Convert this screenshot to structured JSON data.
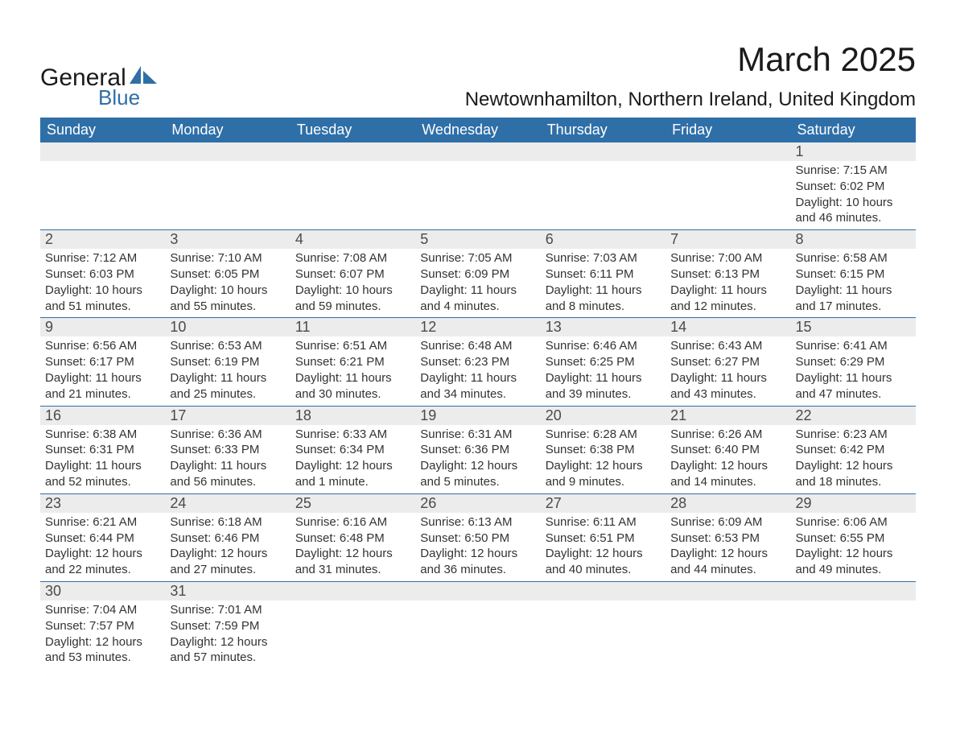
{
  "brand": {
    "main": "General",
    "sub": "Blue",
    "accent": "#2f6fa8"
  },
  "title": "March 2025",
  "location": "Newtownhamilton, Northern Ireland, United Kingdom",
  "colors": {
    "header_bg": "#2f6fa8",
    "header_text": "#ffffff",
    "daynum_bg": "#ececec",
    "daynum_text": "#4a4a4a",
    "body_text": "#333333",
    "rule": "#2f6fa8"
  },
  "day_headers": [
    "Sunday",
    "Monday",
    "Tuesday",
    "Wednesday",
    "Thursday",
    "Friday",
    "Saturday"
  ],
  "weeks": [
    [
      null,
      null,
      null,
      null,
      null,
      null,
      {
        "n": "1",
        "sunrise": "Sunrise: 7:15 AM",
        "sunset": "Sunset: 6:02 PM",
        "daylight1": "Daylight: 10 hours",
        "daylight2": "and 46 minutes."
      }
    ],
    [
      {
        "n": "2",
        "sunrise": "Sunrise: 7:12 AM",
        "sunset": "Sunset: 6:03 PM",
        "daylight1": "Daylight: 10 hours",
        "daylight2": "and 51 minutes."
      },
      {
        "n": "3",
        "sunrise": "Sunrise: 7:10 AM",
        "sunset": "Sunset: 6:05 PM",
        "daylight1": "Daylight: 10 hours",
        "daylight2": "and 55 minutes."
      },
      {
        "n": "4",
        "sunrise": "Sunrise: 7:08 AM",
        "sunset": "Sunset: 6:07 PM",
        "daylight1": "Daylight: 10 hours",
        "daylight2": "and 59 minutes."
      },
      {
        "n": "5",
        "sunrise": "Sunrise: 7:05 AM",
        "sunset": "Sunset: 6:09 PM",
        "daylight1": "Daylight: 11 hours",
        "daylight2": "and 4 minutes."
      },
      {
        "n": "6",
        "sunrise": "Sunrise: 7:03 AM",
        "sunset": "Sunset: 6:11 PM",
        "daylight1": "Daylight: 11 hours",
        "daylight2": "and 8 minutes."
      },
      {
        "n": "7",
        "sunrise": "Sunrise: 7:00 AM",
        "sunset": "Sunset: 6:13 PM",
        "daylight1": "Daylight: 11 hours",
        "daylight2": "and 12 minutes."
      },
      {
        "n": "8",
        "sunrise": "Sunrise: 6:58 AM",
        "sunset": "Sunset: 6:15 PM",
        "daylight1": "Daylight: 11 hours",
        "daylight2": "and 17 minutes."
      }
    ],
    [
      {
        "n": "9",
        "sunrise": "Sunrise: 6:56 AM",
        "sunset": "Sunset: 6:17 PM",
        "daylight1": "Daylight: 11 hours",
        "daylight2": "and 21 minutes."
      },
      {
        "n": "10",
        "sunrise": "Sunrise: 6:53 AM",
        "sunset": "Sunset: 6:19 PM",
        "daylight1": "Daylight: 11 hours",
        "daylight2": "and 25 minutes."
      },
      {
        "n": "11",
        "sunrise": "Sunrise: 6:51 AM",
        "sunset": "Sunset: 6:21 PM",
        "daylight1": "Daylight: 11 hours",
        "daylight2": "and 30 minutes."
      },
      {
        "n": "12",
        "sunrise": "Sunrise: 6:48 AM",
        "sunset": "Sunset: 6:23 PM",
        "daylight1": "Daylight: 11 hours",
        "daylight2": "and 34 minutes."
      },
      {
        "n": "13",
        "sunrise": "Sunrise: 6:46 AM",
        "sunset": "Sunset: 6:25 PM",
        "daylight1": "Daylight: 11 hours",
        "daylight2": "and 39 minutes."
      },
      {
        "n": "14",
        "sunrise": "Sunrise: 6:43 AM",
        "sunset": "Sunset: 6:27 PM",
        "daylight1": "Daylight: 11 hours",
        "daylight2": "and 43 minutes."
      },
      {
        "n": "15",
        "sunrise": "Sunrise: 6:41 AM",
        "sunset": "Sunset: 6:29 PM",
        "daylight1": "Daylight: 11 hours",
        "daylight2": "and 47 minutes."
      }
    ],
    [
      {
        "n": "16",
        "sunrise": "Sunrise: 6:38 AM",
        "sunset": "Sunset: 6:31 PM",
        "daylight1": "Daylight: 11 hours",
        "daylight2": "and 52 minutes."
      },
      {
        "n": "17",
        "sunrise": "Sunrise: 6:36 AM",
        "sunset": "Sunset: 6:33 PM",
        "daylight1": "Daylight: 11 hours",
        "daylight2": "and 56 minutes."
      },
      {
        "n": "18",
        "sunrise": "Sunrise: 6:33 AM",
        "sunset": "Sunset: 6:34 PM",
        "daylight1": "Daylight: 12 hours",
        "daylight2": "and 1 minute."
      },
      {
        "n": "19",
        "sunrise": "Sunrise: 6:31 AM",
        "sunset": "Sunset: 6:36 PM",
        "daylight1": "Daylight: 12 hours",
        "daylight2": "and 5 minutes."
      },
      {
        "n": "20",
        "sunrise": "Sunrise: 6:28 AM",
        "sunset": "Sunset: 6:38 PM",
        "daylight1": "Daylight: 12 hours",
        "daylight2": "and 9 minutes."
      },
      {
        "n": "21",
        "sunrise": "Sunrise: 6:26 AM",
        "sunset": "Sunset: 6:40 PM",
        "daylight1": "Daylight: 12 hours",
        "daylight2": "and 14 minutes."
      },
      {
        "n": "22",
        "sunrise": "Sunrise: 6:23 AM",
        "sunset": "Sunset: 6:42 PM",
        "daylight1": "Daylight: 12 hours",
        "daylight2": "and 18 minutes."
      }
    ],
    [
      {
        "n": "23",
        "sunrise": "Sunrise: 6:21 AM",
        "sunset": "Sunset: 6:44 PM",
        "daylight1": "Daylight: 12 hours",
        "daylight2": "and 22 minutes."
      },
      {
        "n": "24",
        "sunrise": "Sunrise: 6:18 AM",
        "sunset": "Sunset: 6:46 PM",
        "daylight1": "Daylight: 12 hours",
        "daylight2": "and 27 minutes."
      },
      {
        "n": "25",
        "sunrise": "Sunrise: 6:16 AM",
        "sunset": "Sunset: 6:48 PM",
        "daylight1": "Daylight: 12 hours",
        "daylight2": "and 31 minutes."
      },
      {
        "n": "26",
        "sunrise": "Sunrise: 6:13 AM",
        "sunset": "Sunset: 6:50 PM",
        "daylight1": "Daylight: 12 hours",
        "daylight2": "and 36 minutes."
      },
      {
        "n": "27",
        "sunrise": "Sunrise: 6:11 AM",
        "sunset": "Sunset: 6:51 PM",
        "daylight1": "Daylight: 12 hours",
        "daylight2": "and 40 minutes."
      },
      {
        "n": "28",
        "sunrise": "Sunrise: 6:09 AM",
        "sunset": "Sunset: 6:53 PM",
        "daylight1": "Daylight: 12 hours",
        "daylight2": "and 44 minutes."
      },
      {
        "n": "29",
        "sunrise": "Sunrise: 6:06 AM",
        "sunset": "Sunset: 6:55 PM",
        "daylight1": "Daylight: 12 hours",
        "daylight2": "and 49 minutes."
      }
    ],
    [
      {
        "n": "30",
        "sunrise": "Sunrise: 7:04 AM",
        "sunset": "Sunset: 7:57 PM",
        "daylight1": "Daylight: 12 hours",
        "daylight2": "and 53 minutes."
      },
      {
        "n": "31",
        "sunrise": "Sunrise: 7:01 AM",
        "sunset": "Sunset: 7:59 PM",
        "daylight1": "Daylight: 12 hours",
        "daylight2": "and 57 minutes."
      },
      null,
      null,
      null,
      null,
      null
    ]
  ]
}
